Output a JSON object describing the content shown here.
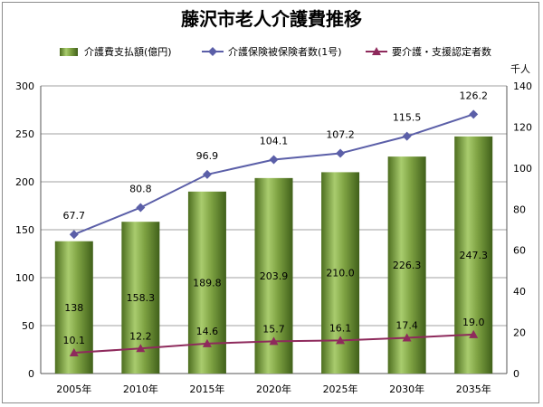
{
  "chart_data": {
    "type": "bar",
    "title": "藤沢市老人介護費推移",
    "categories": [
      "2005年",
      "2010年",
      "2015年",
      "2020年",
      "2025年",
      "2030年",
      "2035年"
    ],
    "series": [
      {
        "name": "介護費支払額(億円)",
        "kind": "bar",
        "axis": "left",
        "color": "#6a8f32",
        "values": [
          138,
          158.3,
          189.8,
          203.9,
          210.0,
          226.3,
          247.3
        ],
        "labels": [
          "138",
          "158.3",
          "189.8",
          "203.9",
          "210.0",
          "226.3",
          "247.3"
        ]
      },
      {
        "name": "介護保険被保険者数(1号)",
        "kind": "line",
        "axis": "right",
        "color": "#5b5fa8",
        "marker": "diamond",
        "values": [
          67.7,
          80.8,
          96.9,
          104.1,
          107.2,
          115.5,
          126.2
        ],
        "labels": [
          "67.7",
          "80.8",
          "96.9",
          "104.1",
          "107.2",
          "115.5",
          "126.2"
        ]
      },
      {
        "name": "要介護・支援認定者数",
        "kind": "line",
        "axis": "right",
        "color": "#8e2a5c",
        "marker": "triangle",
        "values": [
          10.1,
          12.2,
          14.6,
          15.7,
          16.1,
          17.4,
          19.0
        ],
        "labels": [
          "10.1",
          "12.2",
          "14.6",
          "15.7",
          "16.1",
          "17.4",
          "19.0"
        ]
      }
    ],
    "y_left": {
      "min": 0,
      "max": 300,
      "ticks": [
        "0",
        "50",
        "100",
        "150",
        "200",
        "250",
        "300"
      ]
    },
    "y_right": {
      "min": 0,
      "max": 140,
      "ticks": [
        "0",
        "20",
        "40",
        "60",
        "80",
        "100",
        "120",
        "140"
      ],
      "unit": "千人"
    },
    "legend": "top",
    "grid": true
  }
}
